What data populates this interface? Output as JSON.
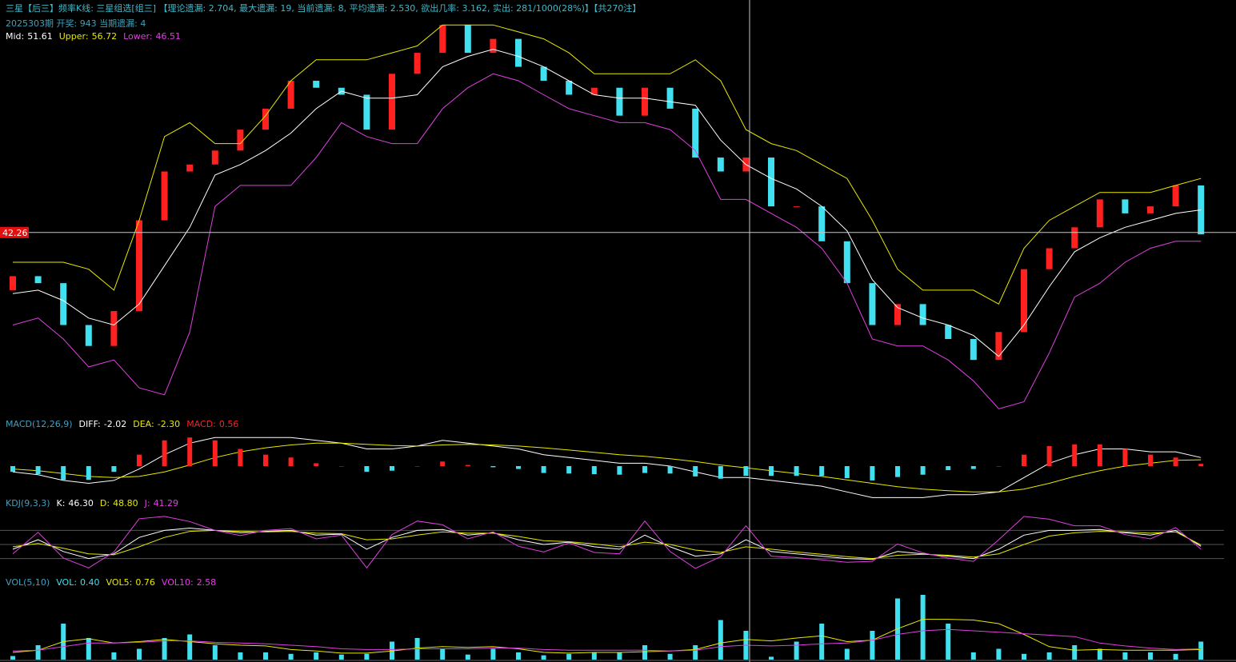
{
  "header": {
    "line1": "三星【后三】频率K线: 三星组选[组三] 【理论遗漏: 2.704, 最大遗漏: 19, 当前遗漏: 8, 平均遗漏: 2.530, 欲出几率: 3.162, 实出: 281/1000(28%)】【共270注】",
    "line2": "2025303期 开奖: 943 当期遗漏: 4"
  },
  "chart_data": [
    {
      "type": "candlestick",
      "up_color": "#ff2020",
      "down_color": "#40e0f0",
      "ylim": [
        16,
        75
      ],
      "crosshair": 42.26,
      "open": [
        34,
        36,
        35,
        29,
        26,
        31,
        44,
        51,
        52,
        54,
        57,
        60,
        64,
        63,
        62,
        57,
        65,
        68,
        72,
        68,
        70,
        66,
        64,
        62,
        63,
        59,
        63,
        60,
        53,
        51,
        53,
        46,
        46,
        41,
        35,
        29,
        32,
        29,
        27,
        24,
        28,
        37,
        40,
        43,
        47,
        45,
        46,
        49
      ],
      "close": [
        36,
        35,
        29,
        26,
        31,
        44,
        51,
        52,
        54,
        57,
        60,
        64,
        63,
        62,
        57,
        65,
        68,
        72,
        68,
        70,
        66,
        64,
        62,
        63,
        59,
        63,
        60,
        53,
        51,
        53,
        46,
        46,
        41,
        35,
        29,
        32,
        29,
        27,
        24,
        28,
        37,
        40,
        43,
        47,
        45,
        46,
        49,
        42
      ],
      "series": [
        {
          "name": "Mid:",
          "readout": "51.61",
          "color": "#ffffff",
          "kind": "line",
          "values": [
            33.5,
            34,
            32.5,
            30,
            29,
            32,
            37.5,
            43,
            50.5,
            52,
            54,
            56.5,
            60,
            62.5,
            61.5,
            61.5,
            62,
            66,
            67.5,
            68.5,
            67.5,
            66,
            64,
            62,
            61.5,
            61.5,
            61,
            60.5,
            55.5,
            52,
            50,
            48.5,
            46,
            42.5,
            35.5,
            31.5,
            30,
            29,
            27.5,
            24.5,
            29,
            34.5,
            39.5,
            41.5,
            43,
            44,
            45,
            45.5
          ]
        },
        {
          "name": "Upper:",
          "readout": "56.72",
          "color": "#e8e800",
          "kind": "line",
          "values": [
            38,
            38,
            38,
            37,
            34,
            44,
            56,
            58,
            55,
            55,
            59,
            64,
            67,
            67,
            67,
            68,
            69,
            72,
            72,
            72,
            71,
            70,
            68,
            65,
            65,
            65,
            65,
            67,
            64,
            57,
            55,
            54,
            52,
            50,
            44,
            37,
            34,
            34,
            34,
            32,
            40,
            44,
            46,
            48,
            48,
            48,
            49,
            50
          ]
        },
        {
          "name": "Lower:",
          "readout": "46.51",
          "color": "#e040e0",
          "kind": "line",
          "values": [
            29,
            30,
            27,
            23,
            24,
            20,
            19,
            28,
            46,
            49,
            49,
            49,
            53,
            58,
            56,
            55,
            55,
            60,
            63,
            65,
            64,
            62,
            60,
            59,
            58,
            58,
            57,
            54,
            47,
            47,
            45,
            43,
            40,
            35,
            27,
            26,
            26,
            24,
            21,
            17,
            18,
            25,
            33,
            35,
            38,
            40,
            41,
            41
          ]
        }
      ]
    },
    {
      "type": "macd",
      "title": "MACD(12,26,9)",
      "ylim": [
        -6,
        6
      ],
      "series": [
        {
          "name": "DIFF:",
          "readout": "-2.02",
          "color": "#ffffff",
          "kind": "line",
          "values": [
            -1,
            -1.5,
            -2.5,
            -3,
            -2.5,
            -0.5,
            2,
            4,
            5,
            5,
            5,
            5,
            4.5,
            4,
            3,
            3,
            3.5,
            4.5,
            4,
            3.5,
            3,
            2,
            1.5,
            1,
            0.5,
            0.5,
            0,
            -1,
            -2,
            -2,
            -2.5,
            -3,
            -3.5,
            -4.5,
            -5.5,
            -5.5,
            -5.5,
            -5,
            -5,
            -4.5,
            -2,
            0.5,
            2,
            3,
            3,
            2.5,
            2.5,
            1.5
          ]
        },
        {
          "name": "DEA:",
          "readout": "-2.30",
          "color": "#e8e800",
          "kind": "line",
          "values": [
            -0.5,
            -0.8,
            -1.3,
            -1.8,
            -2,
            -1.8,
            -1,
            0.2,
            1.5,
            2.5,
            3.2,
            3.7,
            4,
            4,
            3.8,
            3.6,
            3.5,
            3.7,
            3.8,
            3.7,
            3.5,
            3.2,
            2.8,
            2.4,
            2,
            1.7,
            1.3,
            0.8,
            0.2,
            -0.3,
            -0.8,
            -1.3,
            -1.8,
            -2.4,
            -3,
            -3.6,
            -4,
            -4.3,
            -4.5,
            -4.5,
            -4,
            -3,
            -1.8,
            -0.8,
            0,
            0.5,
            1,
            1.1
          ]
        },
        {
          "name": "MACD:",
          "readout": "0.56",
          "color": "#ff2020",
          "down_color": "#40e0f0",
          "kind": "bar",
          "values": [
            -1,
            -1.4,
            -2.4,
            -2.4,
            -1,
            2,
            4.5,
            5,
            4.5,
            3,
            2,
            1.5,
            0.5,
            0,
            -1,
            -0.8,
            0,
            0.8,
            0.2,
            -0.2,
            -0.5,
            -1.2,
            -1.3,
            -1.4,
            -1.5,
            -1.2,
            -1.3,
            -1.8,
            -2.2,
            -1.7,
            -1.7,
            -1.7,
            -1.7,
            -2.1,
            -2.5,
            -1.9,
            -1.5,
            -0.7,
            -0.5,
            0,
            2,
            3.5,
            3.8,
            3.8,
            3,
            2,
            1.5,
            0.4
          ]
        }
      ]
    },
    {
      "type": "kdj",
      "title": "KDJ(9,3,3)",
      "ylim": [
        -20,
        120
      ],
      "yticks": [
        20,
        50,
        80
      ],
      "series": [
        {
          "name": "K:",
          "readout": "46.30",
          "color": "#ffffff",
          "kind": "line",
          "values": [
            40,
            60,
            35,
            20,
            30,
            65,
            80,
            85,
            80,
            75,
            78,
            80,
            70,
            72,
            40,
            65,
            80,
            82,
            70,
            75,
            60,
            50,
            55,
            45,
            40,
            70,
            45,
            25,
            30,
            60,
            35,
            30,
            25,
            20,
            18,
            35,
            30,
            25,
            20,
            40,
            70,
            80,
            80,
            82,
            75,
            70,
            80,
            46
          ]
        },
        {
          "name": "D:",
          "readout": "48.80",
          "color": "#e8e800",
          "kind": "line",
          "values": [
            45,
            52,
            42,
            30,
            28,
            45,
            65,
            78,
            80,
            78,
            77,
            78,
            74,
            73,
            60,
            62,
            70,
            77,
            74,
            74,
            67,
            58,
            56,
            51,
            45,
            55,
            50,
            38,
            33,
            45,
            40,
            34,
            29,
            24,
            20,
            27,
            29,
            27,
            23,
            30,
            50,
            68,
            75,
            78,
            77,
            74,
            77,
            49
          ]
        },
        {
          "name": "J:",
          "readout": "41.29",
          "color": "#e040e0",
          "kind": "line",
          "values": [
            30,
            76,
            21,
            0,
            34,
            105,
            110,
            99,
            80,
            69,
            80,
            84,
            62,
            70,
            0,
            71,
            100,
            92,
            62,
            77,
            46,
            34,
            53,
            33,
            30,
            100,
            35,
            -1,
            24,
            90,
            25,
            22,
            17,
            12,
            14,
            51,
            32,
            21,
            14,
            60,
            110,
            104,
            90,
            90,
            71,
            62,
            86,
            40
          ]
        }
      ]
    },
    {
      "type": "vol",
      "title": "VOL(5,10)",
      "ylim": [
        0,
        10
      ],
      "series": [
        {
          "name": "VOL:",
          "readout": "0.40",
          "color": "#40e0f0",
          "kind": "bar",
          "values": [
            0.5,
            2,
            5,
            3,
            1,
            1.5,
            3,
            3.5,
            2,
            1,
            1,
            0.8,
            1,
            0.7,
            0.8,
            2.5,
            3,
            1.5,
            0.7,
            1.5,
            1,
            0.6,
            0.8,
            1,
            1,
            2,
            0.8,
            2,
            5.5,
            4,
            0.4,
            2.5,
            5,
            1.5,
            4,
            8.5,
            9,
            5,
            1,
            1.5,
            0.8,
            1,
            2,
            1.5,
            1,
            1,
            0.8,
            2.5
          ]
        },
        {
          "name": "VOL5:",
          "readout": "0.76",
          "color": "#e8e800",
          "kind": "line",
          "values": [
            1,
            1.3,
            2.5,
            2.9,
            2.3,
            2.5,
            2.8,
            2.5,
            2.2,
            2,
            1.9,
            1.4,
            1.2,
            0.9,
            0.9,
            1.2,
            1.6,
            1.8,
            1.7,
            1.8,
            1.5,
            1,
            0.9,
            1,
            1,
            1.1,
            1.2,
            1.4,
            2.3,
            2.8,
            2.6,
            3,
            3.3,
            2.5,
            2.7,
            4.3,
            5.6,
            5.6,
            5.5,
            5,
            3.5,
            1.8,
            1.3,
            1.4,
            1.3,
            1.3,
            1.3,
            1.4
          ]
        },
        {
          "name": "VOL10:",
          "readout": "2.58",
          "color": "#e040e0",
          "kind": "line",
          "values": [
            1.2,
            1.3,
            1.8,
            2.3,
            2.3,
            2.4,
            2.6,
            2.6,
            2.4,
            2.3,
            2.2,
            2,
            1.8,
            1.5,
            1.4,
            1.4,
            1.5,
            1.5,
            1.5,
            1.6,
            1.6,
            1.4,
            1.3,
            1.3,
            1.3,
            1.3,
            1.2,
            1.3,
            1.8,
            2,
            1.9,
            2,
            2.2,
            2.3,
            2.7,
            3.5,
            4,
            4.2,
            4,
            3.8,
            3.6,
            3.4,
            3.2,
            2.3,
            1.9,
            1.6,
            1.4,
            1.5
          ]
        }
      ]
    }
  ]
}
